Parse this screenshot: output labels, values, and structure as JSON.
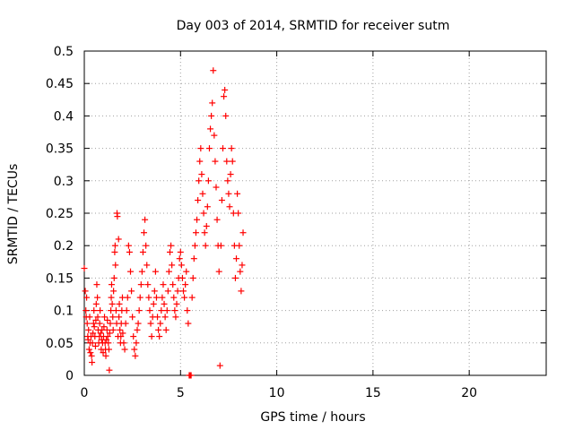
{
  "chart_data": {
    "type": "scatter",
    "title": "Day 003 of 2014, SRMTID for receiver sutm",
    "xlabel": "GPS time / hours",
    "ylabel": "SRMTID / TECUs",
    "xlim": [
      0,
      24
    ],
    "ylim": [
      0,
      0.5
    ],
    "x_ticks": [
      0,
      5,
      10,
      15,
      20
    ],
    "x_tick_labels": [
      "0",
      "5",
      "10",
      "15",
      "20"
    ],
    "y_ticks": [
      0,
      0.05,
      0.1,
      0.15,
      0.2,
      0.25,
      0.3,
      0.35,
      0.4,
      0.45,
      0.5
    ],
    "y_tick_labels": [
      "0",
      "0.05",
      "0.1",
      "0.15",
      "0.2",
      "0.25",
      "0.3",
      "0.35",
      "0.4",
      "0.45",
      "0.5"
    ],
    "grid": true,
    "marker": "+",
    "colors": {
      "series": "#ff0000",
      "grid": "#a0a0a0",
      "frame": "#000000"
    },
    "series": [
      {
        "name": "SRMTID",
        "points": [
          [
            0.0,
            0.165
          ],
          [
            0.05,
            0.13
          ],
          [
            0.08,
            0.1
          ],
          [
            0.1,
            0.09
          ],
          [
            0.12,
            0.12
          ],
          [
            0.15,
            0.08
          ],
          [
            0.18,
            0.06
          ],
          [
            0.2,
            0.055
          ],
          [
            0.22,
            0.07
          ],
          [
            0.25,
            0.04
          ],
          [
            0.28,
            0.09
          ],
          [
            0.3,
            0.05
          ],
          [
            0.32,
            0.035
          ],
          [
            0.35,
            0.06
          ],
          [
            0.38,
            0.03
          ],
          [
            0.4,
            0.02
          ],
          [
            0.42,
            0.05
          ],
          [
            0.45,
            0.065
          ],
          [
            0.48,
            0.08
          ],
          [
            0.5,
            0.1
          ],
          [
            0.52,
            0.075
          ],
          [
            0.55,
            0.06
          ],
          [
            0.58,
            0.045
          ],
          [
            0.6,
            0.085
          ],
          [
            0.62,
            0.11
          ],
          [
            0.65,
            0.14
          ],
          [
            0.68,
            0.12
          ],
          [
            0.7,
            0.09
          ],
          [
            0.72,
            0.07
          ],
          [
            0.75,
            0.05
          ],
          [
            0.78,
            0.06
          ],
          [
            0.8,
            0.08
          ],
          [
            0.82,
            0.1
          ],
          [
            0.85,
            0.065
          ],
          [
            0.88,
            0.04
          ],
          [
            0.9,
            0.055
          ],
          [
            0.92,
            0.07
          ],
          [
            0.95,
            0.05
          ],
          [
            0.98,
            0.035
          ],
          [
            1.0,
            0.06
          ],
          [
            1.02,
            0.075
          ],
          [
            1.05,
            0.09
          ],
          [
            1.08,
            0.05
          ],
          [
            1.1,
            0.04
          ],
          [
            1.12,
            0.03
          ],
          [
            1.15,
            0.055
          ],
          [
            1.18,
            0.07
          ],
          [
            1.2,
            0.085
          ],
          [
            1.22,
            0.06
          ],
          [
            1.25,
            0.05
          ],
          [
            1.28,
            0.04
          ],
          [
            1.3,
            0.008
          ],
          [
            1.32,
            0.065
          ],
          [
            1.35,
            0.08
          ],
          [
            1.38,
            0.1
          ],
          [
            1.4,
            0.12
          ],
          [
            1.42,
            0.14
          ],
          [
            1.45,
            0.11
          ],
          [
            1.48,
            0.09
          ],
          [
            1.5,
            0.07
          ],
          [
            1.52,
            0.13
          ],
          [
            1.55,
            0.15
          ],
          [
            1.58,
            0.19
          ],
          [
            1.6,
            0.2
          ],
          [
            1.62,
            0.17
          ],
          [
            1.65,
            0.1
          ],
          [
            1.68,
            0.08
          ],
          [
            1.7,
            0.25
          ],
          [
            1.72,
            0.245
          ],
          [
            1.75,
            0.06
          ],
          [
            1.78,
            0.21
          ],
          [
            1.8,
            0.09
          ],
          [
            1.82,
            0.11
          ],
          [
            1.85,
            0.07
          ],
          [
            1.88,
            0.05
          ],
          [
            1.9,
            0.06
          ],
          [
            1.92,
            0.08
          ],
          [
            1.95,
            0.1
          ],
          [
            1.98,
            0.12
          ],
          [
            2.0,
            0.065
          ],
          [
            2.05,
            0.05
          ],
          [
            2.1,
            0.04
          ],
          [
            2.15,
            0.08
          ],
          [
            2.2,
            0.1
          ],
          [
            2.25,
            0.12
          ],
          [
            2.3,
            0.2
          ],
          [
            2.35,
            0.19
          ],
          [
            2.4,
            0.16
          ],
          [
            2.45,
            0.13
          ],
          [
            2.5,
            0.09
          ],
          [
            2.55,
            0.06
          ],
          [
            2.6,
            0.04
          ],
          [
            2.65,
            0.03
          ],
          [
            2.7,
            0.05
          ],
          [
            2.75,
            0.07
          ],
          [
            2.8,
            0.08
          ],
          [
            2.85,
            0.1
          ],
          [
            2.9,
            0.12
          ],
          [
            2.95,
            0.14
          ],
          [
            3.0,
            0.16
          ],
          [
            3.05,
            0.19
          ],
          [
            3.1,
            0.22
          ],
          [
            3.15,
            0.24
          ],
          [
            3.2,
            0.2
          ],
          [
            3.25,
            0.17
          ],
          [
            3.3,
            0.14
          ],
          [
            3.35,
            0.12
          ],
          [
            3.4,
            0.1
          ],
          [
            3.45,
            0.08
          ],
          [
            3.5,
            0.06
          ],
          [
            3.55,
            0.09
          ],
          [
            3.6,
            0.11
          ],
          [
            3.65,
            0.13
          ],
          [
            3.7,
            0.16
          ],
          [
            3.75,
            0.12
          ],
          [
            3.8,
            0.09
          ],
          [
            3.85,
            0.07
          ],
          [
            3.9,
            0.06
          ],
          [
            3.95,
            0.08
          ],
          [
            4.0,
            0.1
          ],
          [
            4.05,
            0.12
          ],
          [
            4.1,
            0.14
          ],
          [
            4.15,
            0.11
          ],
          [
            4.2,
            0.09
          ],
          [
            4.25,
            0.07
          ],
          [
            4.3,
            0.1
          ],
          [
            4.35,
            0.13
          ],
          [
            4.4,
            0.16
          ],
          [
            4.45,
            0.19
          ],
          [
            4.5,
            0.2
          ],
          [
            4.55,
            0.17
          ],
          [
            4.6,
            0.14
          ],
          [
            4.65,
            0.12
          ],
          [
            4.7,
            0.1
          ],
          [
            4.75,
            0.09
          ],
          [
            4.8,
            0.11
          ],
          [
            4.85,
            0.13
          ],
          [
            4.9,
            0.15
          ],
          [
            4.95,
            0.18
          ],
          [
            5.0,
            0.19
          ],
          [
            5.05,
            0.17
          ],
          [
            5.1,
            0.15
          ],
          [
            5.15,
            0.13
          ],
          [
            5.2,
            0.12
          ],
          [
            5.25,
            0.14
          ],
          [
            5.3,
            0.16
          ],
          [
            5.35,
            0.1
          ],
          [
            5.4,
            0.08
          ],
          [
            5.45,
            0.0
          ],
          [
            5.5,
            0.0
          ],
          [
            5.55,
            0.0
          ],
          [
            5.6,
            0.12
          ],
          [
            5.65,
            0.15
          ],
          [
            5.7,
            0.18
          ],
          [
            5.75,
            0.2
          ],
          [
            5.8,
            0.22
          ],
          [
            5.85,
            0.24
          ],
          [
            5.9,
            0.27
          ],
          [
            5.95,
            0.3
          ],
          [
            6.0,
            0.33
          ],
          [
            6.05,
            0.35
          ],
          [
            6.1,
            0.31
          ],
          [
            6.15,
            0.28
          ],
          [
            6.2,
            0.25
          ],
          [
            6.25,
            0.22
          ],
          [
            6.3,
            0.2
          ],
          [
            6.35,
            0.23
          ],
          [
            6.4,
            0.26
          ],
          [
            6.45,
            0.3
          ],
          [
            6.5,
            0.35
          ],
          [
            6.55,
            0.38
          ],
          [
            6.6,
            0.4
          ],
          [
            6.65,
            0.42
          ],
          [
            6.7,
            0.47
          ],
          [
            6.75,
            0.37
          ],
          [
            6.8,
            0.33
          ],
          [
            6.85,
            0.29
          ],
          [
            6.9,
            0.24
          ],
          [
            6.95,
            0.2
          ],
          [
            7.0,
            0.16
          ],
          [
            7.05,
            0.015
          ],
          [
            7.1,
            0.2
          ],
          [
            7.15,
            0.27
          ],
          [
            7.2,
            0.35
          ],
          [
            7.25,
            0.43
          ],
          [
            7.3,
            0.44
          ],
          [
            7.35,
            0.4
          ],
          [
            7.4,
            0.33
          ],
          [
            7.45,
            0.3
          ],
          [
            7.5,
            0.28
          ],
          [
            7.55,
            0.26
          ],
          [
            7.6,
            0.31
          ],
          [
            7.65,
            0.35
          ],
          [
            7.7,
            0.33
          ],
          [
            7.75,
            0.25
          ],
          [
            7.8,
            0.2
          ],
          [
            7.85,
            0.15
          ],
          [
            7.9,
            0.18
          ],
          [
            7.95,
            0.28
          ],
          [
            8.0,
            0.25
          ],
          [
            8.05,
            0.2
          ],
          [
            8.1,
            0.16
          ],
          [
            8.15,
            0.13
          ],
          [
            8.2,
            0.17
          ],
          [
            8.25,
            0.22
          ]
        ]
      }
    ]
  }
}
